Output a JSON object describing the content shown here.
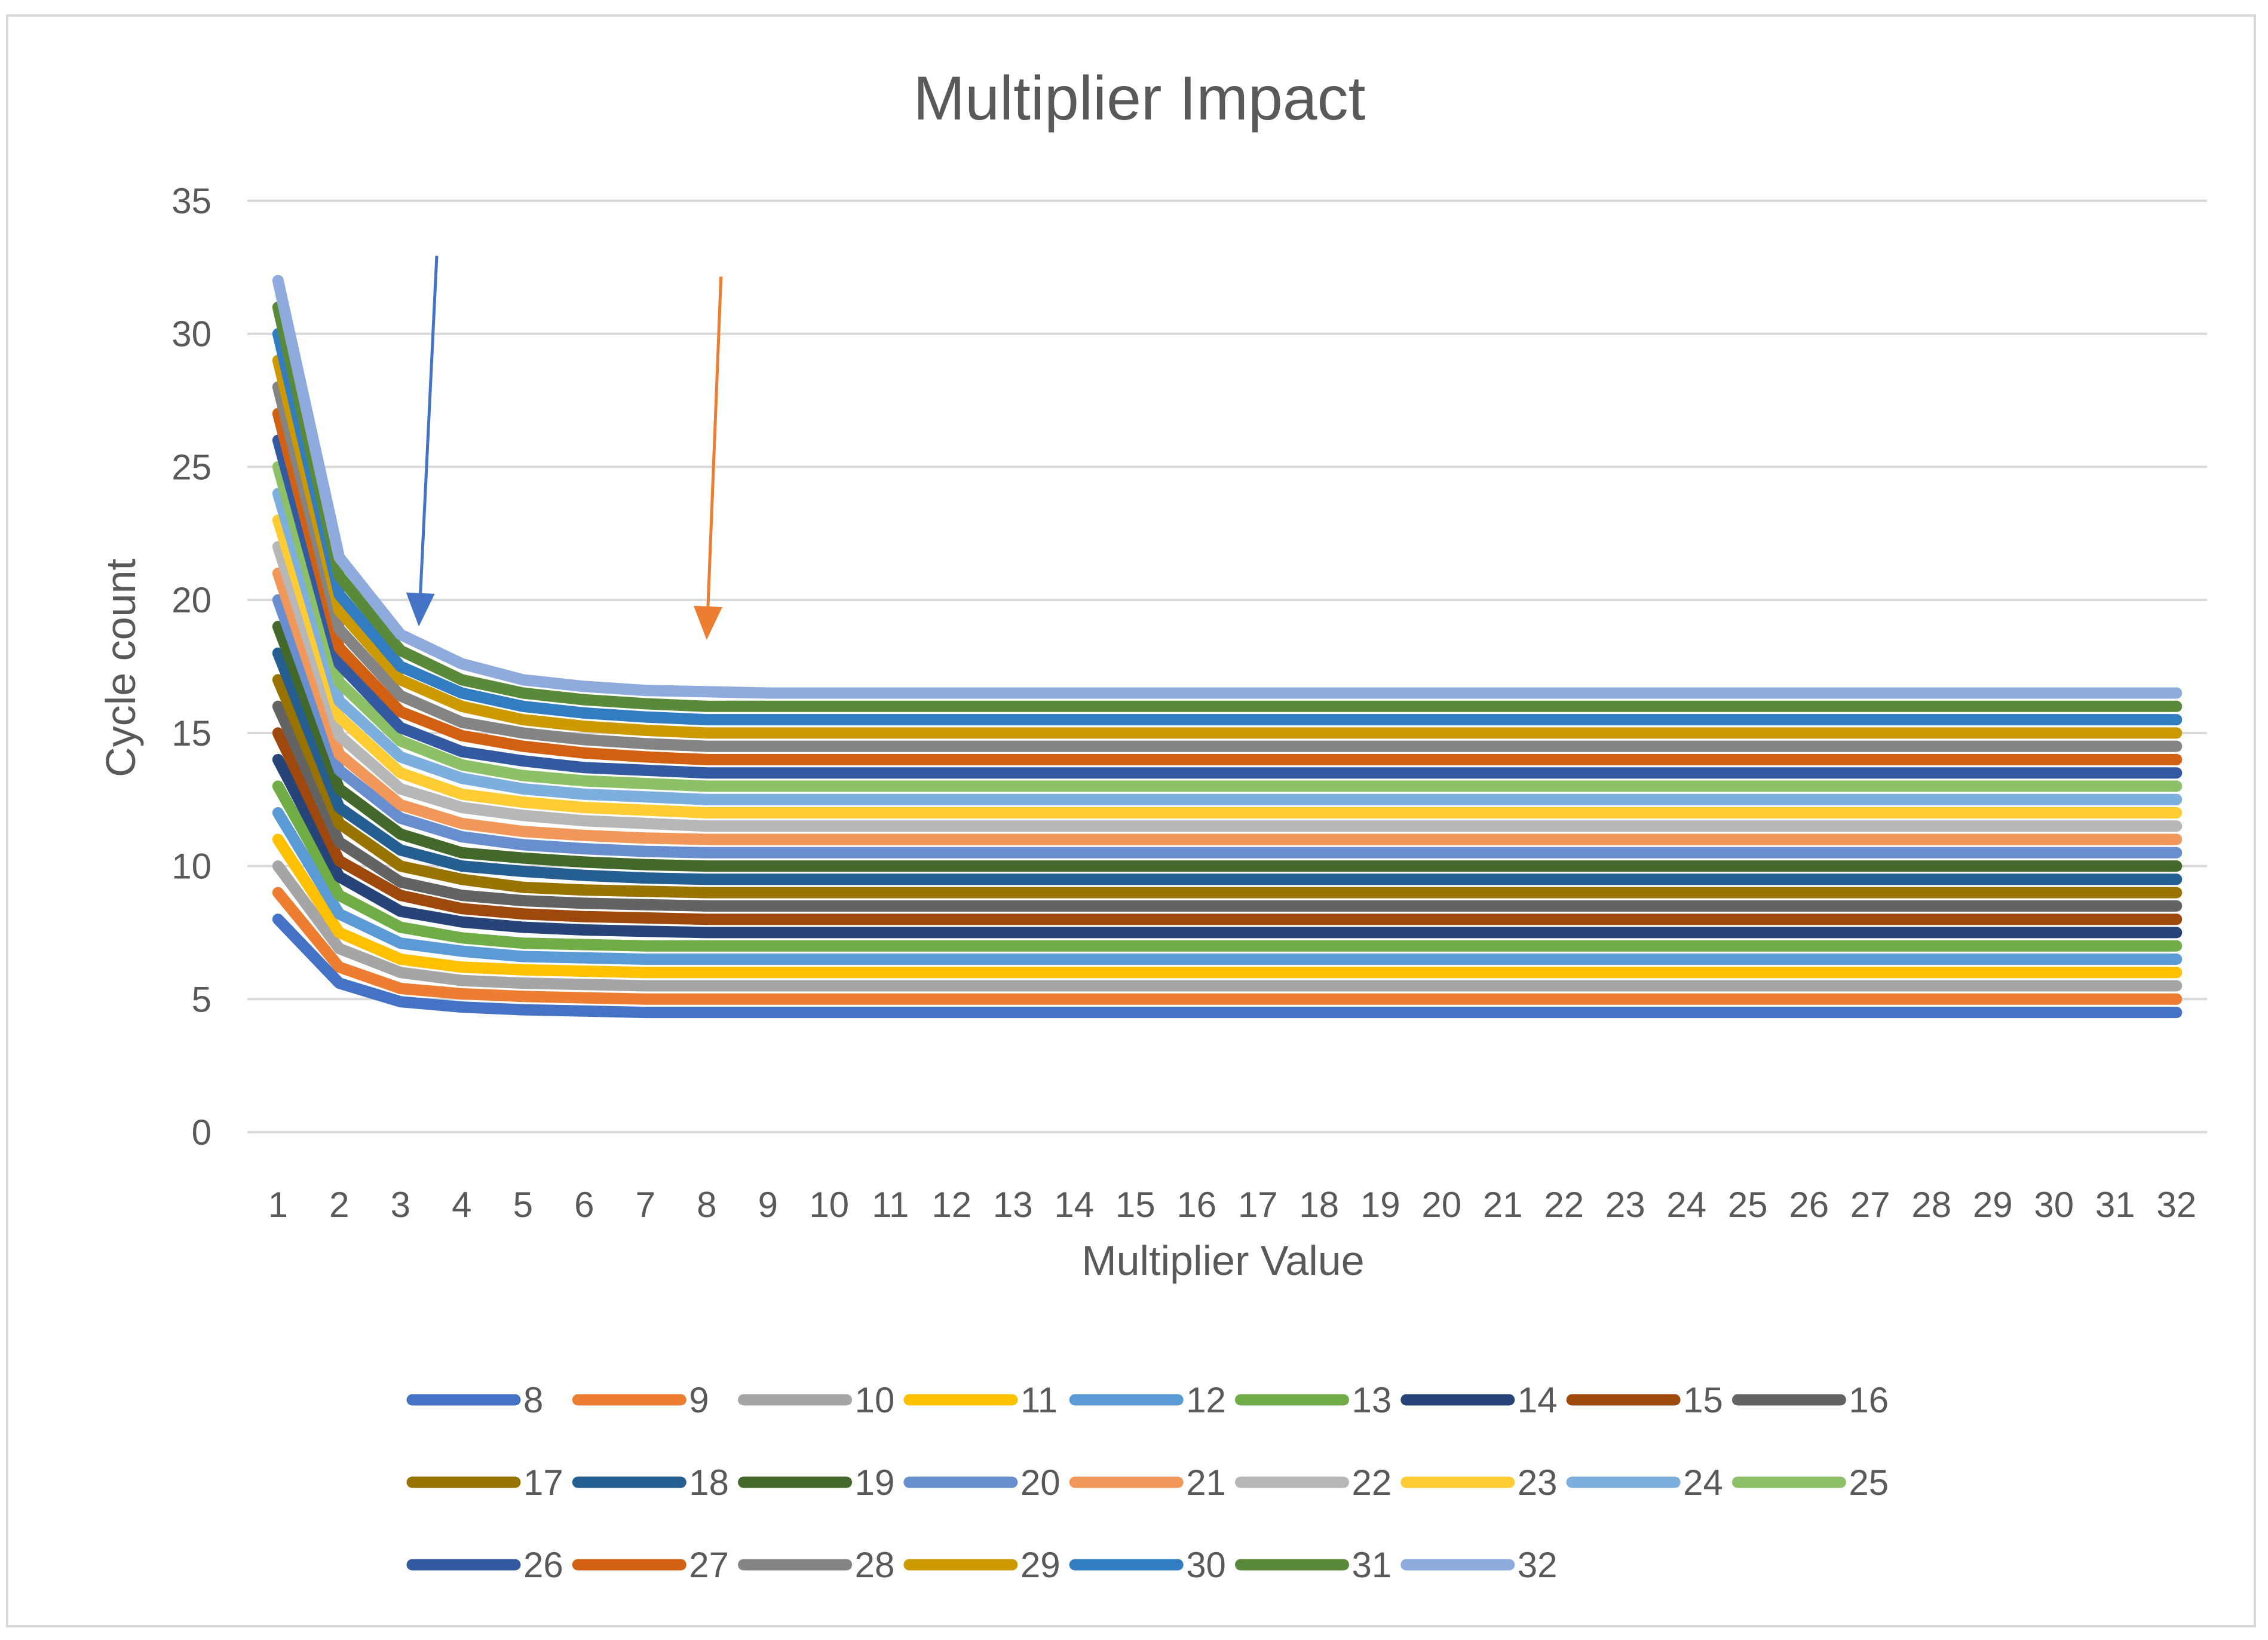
{
  "chart_data": {
    "type": "line",
    "title": "Multiplier Impact",
    "xlabel": "Multiplier Value",
    "ylabel": "Cycle count",
    "ylim": [
      0,
      35
    ],
    "yticks": [
      "0",
      "5",
      "10",
      "15",
      "20",
      "25",
      "30",
      "35"
    ],
    "x": [
      1,
      2,
      3,
      4,
      5,
      6,
      7,
      8,
      9,
      10,
      11,
      12,
      13,
      14,
      15,
      16,
      17,
      18,
      19,
      20,
      21,
      22,
      23,
      24,
      25,
      26,
      27,
      28,
      29,
      30,
      31,
      32
    ],
    "grid": true,
    "legend_position": "bottom",
    "series": [
      {
        "name": "8",
        "color": "#4472C4",
        "values": [
          8,
          5.6,
          4.9,
          4.7,
          4.6,
          4.55,
          4.5,
          4.5,
          4.5,
          4.5,
          4.5,
          4.5,
          4.5,
          4.5,
          4.5,
          4.5,
          4.5,
          4.5,
          4.5,
          4.5,
          4.5,
          4.5,
          4.5,
          4.5,
          4.5,
          4.5,
          4.5,
          4.5,
          4.5,
          4.5,
          4.5,
          4.5
        ]
      },
      {
        "name": "9",
        "color": "#ED7D31",
        "values": [
          9,
          6.2,
          5.4,
          5.2,
          5.1,
          5.05,
          5,
          5,
          5,
          5,
          5,
          5,
          5,
          5,
          5,
          5,
          5,
          5,
          5,
          5,
          5,
          5,
          5,
          5,
          5,
          5,
          5,
          5,
          5,
          5,
          5,
          5
        ]
      },
      {
        "name": "10",
        "color": "#A5A5A5",
        "values": [
          10,
          6.9,
          6,
          5.7,
          5.6,
          5.55,
          5.5,
          5.5,
          5.5,
          5.5,
          5.5,
          5.5,
          5.5,
          5.5,
          5.5,
          5.5,
          5.5,
          5.5,
          5.5,
          5.5,
          5.5,
          5.5,
          5.5,
          5.5,
          5.5,
          5.5,
          5.5,
          5.5,
          5.5,
          5.5,
          5.5,
          5.5
        ]
      },
      {
        "name": "11",
        "color": "#FFC000",
        "values": [
          11,
          7.5,
          6.5,
          6.2,
          6.1,
          6.05,
          6,
          6,
          6,
          6,
          6,
          6,
          6,
          6,
          6,
          6,
          6,
          6,
          6,
          6,
          6,
          6,
          6,
          6,
          6,
          6,
          6,
          6,
          6,
          6,
          6,
          6
        ]
      },
      {
        "name": "12",
        "color": "#5B9BD5",
        "values": [
          12,
          8.2,
          7.1,
          6.8,
          6.6,
          6.55,
          6.5,
          6.5,
          6.5,
          6.5,
          6.5,
          6.5,
          6.5,
          6.5,
          6.5,
          6.5,
          6.5,
          6.5,
          6.5,
          6.5,
          6.5,
          6.5,
          6.5,
          6.5,
          6.5,
          6.5,
          6.5,
          6.5,
          6.5,
          6.5,
          6.5,
          6.5
        ]
      },
      {
        "name": "13",
        "color": "#70AD47",
        "values": [
          13,
          8.9,
          7.7,
          7.3,
          7.1,
          7.05,
          7,
          7,
          7,
          7,
          7,
          7,
          7,
          7,
          7,
          7,
          7,
          7,
          7,
          7,
          7,
          7,
          7,
          7,
          7,
          7,
          7,
          7,
          7,
          7,
          7,
          7
        ]
      },
      {
        "name": "14",
        "color": "#264478",
        "values": [
          14,
          9.6,
          8.3,
          7.9,
          7.7,
          7.6,
          7.55,
          7.5,
          7.5,
          7.5,
          7.5,
          7.5,
          7.5,
          7.5,
          7.5,
          7.5,
          7.5,
          7.5,
          7.5,
          7.5,
          7.5,
          7.5,
          7.5,
          7.5,
          7.5,
          7.5,
          7.5,
          7.5,
          7.5,
          7.5,
          7.5,
          7.5
        ]
      },
      {
        "name": "15",
        "color": "#9E480E",
        "values": [
          15,
          10.2,
          8.9,
          8.4,
          8.2,
          8.1,
          8.05,
          8,
          8,
          8,
          8,
          8,
          8,
          8,
          8,
          8,
          8,
          8,
          8,
          8,
          8,
          8,
          8,
          8,
          8,
          8,
          8,
          8,
          8,
          8,
          8,
          8
        ]
      },
      {
        "name": "16",
        "color": "#636363",
        "values": [
          16,
          10.9,
          9.4,
          8.9,
          8.7,
          8.6,
          8.55,
          8.5,
          8.5,
          8.5,
          8.5,
          8.5,
          8.5,
          8.5,
          8.5,
          8.5,
          8.5,
          8.5,
          8.5,
          8.5,
          8.5,
          8.5,
          8.5,
          8.5,
          8.5,
          8.5,
          8.5,
          8.5,
          8.5,
          8.5,
          8.5,
          8.5
        ]
      },
      {
        "name": "17",
        "color": "#997300",
        "values": [
          17,
          11.6,
          10,
          9.5,
          9.2,
          9.1,
          9.05,
          9,
          9,
          9,
          9,
          9,
          9,
          9,
          9,
          9,
          9,
          9,
          9,
          9,
          9,
          9,
          9,
          9,
          9,
          9,
          9,
          9,
          9,
          9,
          9,
          9
        ]
      },
      {
        "name": "18",
        "color": "#255E91",
        "values": [
          18,
          12.2,
          10.6,
          10,
          9.8,
          9.65,
          9.55,
          9.5,
          9.5,
          9.5,
          9.5,
          9.5,
          9.5,
          9.5,
          9.5,
          9.5,
          9.5,
          9.5,
          9.5,
          9.5,
          9.5,
          9.5,
          9.5,
          9.5,
          9.5,
          9.5,
          9.5,
          9.5,
          9.5,
          9.5,
          9.5,
          9.5
        ]
      },
      {
        "name": "19",
        "color": "#43682B",
        "values": [
          19,
          12.9,
          11.2,
          10.5,
          10.3,
          10.15,
          10.05,
          10,
          10,
          10,
          10,
          10,
          10,
          10,
          10,
          10,
          10,
          10,
          10,
          10,
          10,
          10,
          10,
          10,
          10,
          10,
          10,
          10,
          10,
          10,
          10,
          10
        ]
      },
      {
        "name": "20",
        "color": "#698ED0",
        "values": [
          20,
          13.6,
          11.8,
          11.1,
          10.8,
          10.65,
          10.55,
          10.5,
          10.5,
          10.5,
          10.5,
          10.5,
          10.5,
          10.5,
          10.5,
          10.5,
          10.5,
          10.5,
          10.5,
          10.5,
          10.5,
          10.5,
          10.5,
          10.5,
          10.5,
          10.5,
          10.5,
          10.5,
          10.5,
          10.5,
          10.5,
          10.5
        ]
      },
      {
        "name": "21",
        "color": "#F1975A",
        "values": [
          21,
          14.2,
          12.3,
          11.6,
          11.3,
          11.15,
          11.05,
          11,
          11,
          11,
          11,
          11,
          11,
          11,
          11,
          11,
          11,
          11,
          11,
          11,
          11,
          11,
          11,
          11,
          11,
          11,
          11,
          11,
          11,
          11,
          11,
          11
        ]
      },
      {
        "name": "22",
        "color": "#B7B7B7",
        "values": [
          22,
          14.9,
          12.9,
          12.2,
          11.9,
          11.7,
          11.6,
          11.5,
          11.5,
          11.5,
          11.5,
          11.5,
          11.5,
          11.5,
          11.5,
          11.5,
          11.5,
          11.5,
          11.5,
          11.5,
          11.5,
          11.5,
          11.5,
          11.5,
          11.5,
          11.5,
          11.5,
          11.5,
          11.5,
          11.5,
          11.5,
          11.5
        ]
      },
      {
        "name": "23",
        "color": "#FFCD33",
        "values": [
          23,
          15.6,
          13.5,
          12.7,
          12.4,
          12.2,
          12.1,
          12,
          12,
          12,
          12,
          12,
          12,
          12,
          12,
          12,
          12,
          12,
          12,
          12,
          12,
          12,
          12,
          12,
          12,
          12,
          12,
          12,
          12,
          12,
          12,
          12
        ]
      },
      {
        "name": "24",
        "color": "#7CAFDD",
        "values": [
          24,
          16.2,
          14.1,
          13.3,
          12.9,
          12.7,
          12.6,
          12.5,
          12.5,
          12.5,
          12.5,
          12.5,
          12.5,
          12.5,
          12.5,
          12.5,
          12.5,
          12.5,
          12.5,
          12.5,
          12.5,
          12.5,
          12.5,
          12.5,
          12.5,
          12.5,
          12.5,
          12.5,
          12.5,
          12.5,
          12.5,
          12.5
        ]
      },
      {
        "name": "25",
        "color": "#8CC168",
        "values": [
          25,
          16.9,
          14.7,
          13.8,
          13.4,
          13.2,
          13.1,
          13,
          13,
          13,
          13,
          13,
          13,
          13,
          13,
          13,
          13,
          13,
          13,
          13,
          13,
          13,
          13,
          13,
          13,
          13,
          13,
          13,
          13,
          13,
          13,
          13
        ]
      },
      {
        "name": "26",
        "color": "#335AA1",
        "values": [
          26,
          17.6,
          15.2,
          14.3,
          13.95,
          13.7,
          13.6,
          13.5,
          13.5,
          13.5,
          13.5,
          13.5,
          13.5,
          13.5,
          13.5,
          13.5,
          13.5,
          13.5,
          13.5,
          13.5,
          13.5,
          13.5,
          13.5,
          13.5,
          13.5,
          13.5,
          13.5,
          13.5,
          13.5,
          13.5,
          13.5,
          13.5
        ]
      },
      {
        "name": "27",
        "color": "#D26012",
        "values": [
          27,
          18.2,
          15.8,
          14.9,
          14.5,
          14.25,
          14.1,
          14,
          14,
          14,
          14,
          14,
          14,
          14,
          14,
          14,
          14,
          14,
          14,
          14,
          14,
          14,
          14,
          14,
          14,
          14,
          14,
          14,
          14,
          14,
          14,
          14
        ]
      },
      {
        "name": "28",
        "color": "#848484",
        "values": [
          28,
          18.9,
          16.4,
          15.4,
          15,
          14.75,
          14.6,
          14.5,
          14.5,
          14.5,
          14.5,
          14.5,
          14.5,
          14.5,
          14.5,
          14.5,
          14.5,
          14.5,
          14.5,
          14.5,
          14.5,
          14.5,
          14.5,
          14.5,
          14.5,
          14.5,
          14.5,
          14.5,
          14.5,
          14.5,
          14.5,
          14.5
        ]
      },
      {
        "name": "29",
        "color": "#CC9A00",
        "values": [
          29,
          19.6,
          17,
          16,
          15.5,
          15.25,
          15.1,
          15,
          15,
          15,
          15,
          15,
          15,
          15,
          15,
          15,
          15,
          15,
          15,
          15,
          15,
          15,
          15,
          15,
          15,
          15,
          15,
          15,
          15,
          15,
          15,
          15
        ]
      },
      {
        "name": "30",
        "color": "#327DC2",
        "values": [
          30,
          20.2,
          17.5,
          16.5,
          16,
          15.75,
          15.6,
          15.5,
          15.5,
          15.5,
          15.5,
          15.5,
          15.5,
          15.5,
          15.5,
          15.5,
          15.5,
          15.5,
          15.5,
          15.5,
          15.5,
          15.5,
          15.5,
          15.5,
          15.5,
          15.5,
          15.5,
          15.5,
          15.5,
          15.5,
          15.5,
          15.5
        ]
      },
      {
        "name": "31",
        "color": "#5A8A39",
        "values": [
          31,
          20.9,
          18.1,
          17,
          16.5,
          16.25,
          16.1,
          16,
          16,
          16,
          16,
          16,
          16,
          16,
          16,
          16,
          16,
          16,
          16,
          16,
          16,
          16,
          16,
          16,
          16,
          16,
          16,
          16,
          16,
          16,
          16,
          16
        ]
      },
      {
        "name": "32",
        "color": "#8FAADC",
        "values": [
          32,
          21.6,
          18.7,
          17.6,
          17,
          16.75,
          16.6,
          16.55,
          16.5,
          16.5,
          16.5,
          16.5,
          16.5,
          16.5,
          16.5,
          16.5,
          16.5,
          16.5,
          16.5,
          16.5,
          16.5,
          16.5,
          16.5,
          16.5,
          16.5,
          16.5,
          16.5,
          16.5,
          16.5,
          16.5,
          16.5,
          16.5
        ]
      }
    ],
    "annotations": [
      {
        "type": "arrow",
        "color": "#4472C4",
        "points_to": {
          "x": 3.3,
          "y": 19
        }
      },
      {
        "type": "arrow",
        "color": "#ED7D31",
        "points_to": {
          "x": 8,
          "y": 18.5
        }
      }
    ]
  }
}
